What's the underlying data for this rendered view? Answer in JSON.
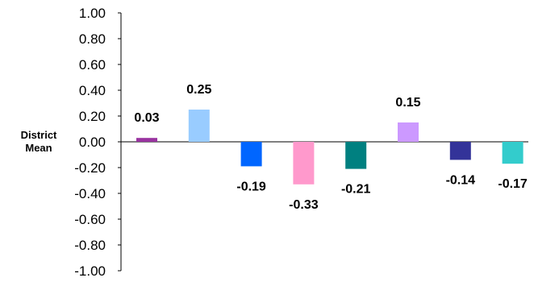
{
  "chart_data": {
    "type": "bar",
    "title": "",
    "xlabel": "",
    "ylabel": [
      "District",
      "Mean"
    ],
    "ylim": [
      -1.0,
      1.0
    ],
    "yticks": [
      "1.00",
      "0.80",
      "0.60",
      "0.40",
      "0.20",
      "0.00",
      "-0.20",
      "-0.40",
      "-0.60",
      "-0.80",
      "-1.00"
    ],
    "ytick_values": [
      1.0,
      0.8,
      0.6,
      0.4,
      0.2,
      0.0,
      -0.2,
      -0.4,
      -0.6,
      -0.8,
      -1.0
    ],
    "grid": false,
    "legend": "none",
    "values": [
      0.03,
      0.25,
      -0.19,
      -0.33,
      -0.21,
      0.15,
      -0.14,
      -0.17
    ],
    "labels": [
      "0.03",
      "0.25",
      "-0.19",
      "-0.33",
      "-0.21",
      "0.15",
      "-0.14",
      "-0.17"
    ],
    "colors": [
      "#9933A0",
      "#99CCFF",
      "#0066FF",
      "#FF99CC",
      "#008080",
      "#CC99FF",
      "#333399",
      "#33CCCC"
    ]
  }
}
